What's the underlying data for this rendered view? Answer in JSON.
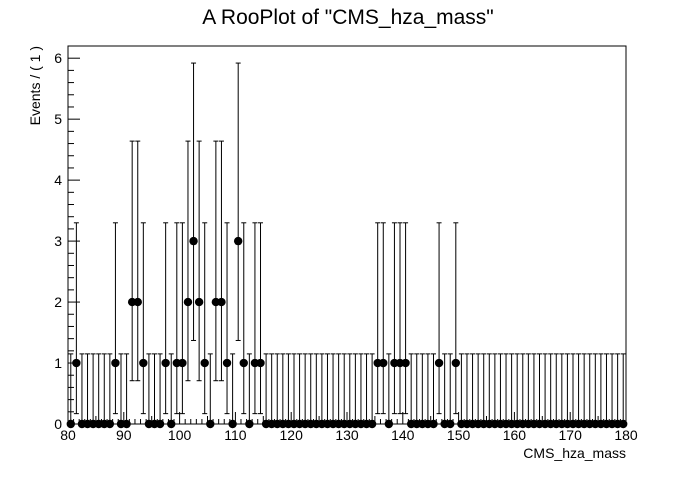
{
  "chart_data": {
    "type": "scatter",
    "title": "A RooPlot of \"CMS_hza_mass\"",
    "xlabel": "CMS_hza_mass",
    "ylabel": "Events / ( 1 )",
    "xlim": [
      80,
      180
    ],
    "ylim": [
      0,
      6.2
    ],
    "x_major_ticks": [
      80,
      90,
      100,
      110,
      120,
      130,
      140,
      150,
      160,
      170,
      180
    ],
    "y_major_ticks": [
      0,
      1,
      2,
      3,
      4,
      5,
      6
    ],
    "grid": false,
    "legend": "none",
    "marker_color": "#000000",
    "bin_centers": [
      80.5,
      81.5,
      82.5,
      83.5,
      84.5,
      85.5,
      86.5,
      87.5,
      88.5,
      89.5,
      90.5,
      91.5,
      92.5,
      93.5,
      94.5,
      95.5,
      96.5,
      97.5,
      98.5,
      99.5,
      100.5,
      101.5,
      102.5,
      103.5,
      104.5,
      105.5,
      106.5,
      107.5,
      108.5,
      109.5,
      110.5,
      111.5,
      112.5,
      113.5,
      114.5,
      115.5,
      116.5,
      117.5,
      118.5,
      119.5,
      120.5,
      121.5,
      122.5,
      123.5,
      124.5,
      125.5,
      126.5,
      127.5,
      128.5,
      129.5,
      130.5,
      131.5,
      132.5,
      133.5,
      134.5,
      135.5,
      136.5,
      137.5,
      138.5,
      139.5,
      140.5,
      141.5,
      142.5,
      143.5,
      144.5,
      145.5,
      146.5,
      147.5,
      148.5,
      149.5,
      150.5,
      151.5,
      152.5,
      153.5,
      154.5,
      155.5,
      156.5,
      157.5,
      158.5,
      159.5,
      160.5,
      161.5,
      162.5,
      163.5,
      164.5,
      165.5,
      166.5,
      167.5,
      168.5,
      169.5,
      170.5,
      171.5,
      172.5,
      173.5,
      174.5,
      175.5,
      176.5,
      177.5,
      178.5,
      179.5
    ],
    "counts": [
      0,
      1,
      0,
      0,
      0,
      0,
      0,
      0,
      1,
      0,
      0,
      2,
      2,
      1,
      0,
      0,
      0,
      1,
      0,
      1,
      1,
      2,
      3,
      2,
      1,
      0,
      2,
      2,
      1,
      0,
      3,
      1,
      0,
      1,
      1,
      0,
      0,
      0,
      0,
      0,
      0,
      0,
      0,
      0,
      0,
      0,
      0,
      0,
      0,
      0,
      0,
      0,
      0,
      0,
      0,
      1,
      1,
      0,
      1,
      1,
      1,
      0,
      0,
      0,
      0,
      0,
      1,
      0,
      0,
      1,
      0,
      0,
      0,
      0,
      0,
      0,
      0,
      0,
      0,
      0,
      0,
      0,
      0,
      0,
      0,
      0,
      0,
      0,
      0,
      0,
      0,
      0,
      0,
      0,
      0,
      0,
      0,
      0,
      0,
      0
    ],
    "error_bars": "Poisson confidence intervals",
    "poisson_intervals": {
      "0": [
        0,
        1.15
      ],
      "1": [
        0.17,
        3.3
      ],
      "2": [
        0.71,
        4.64
      ],
      "3": [
        1.37,
        5.92
      ]
    }
  }
}
